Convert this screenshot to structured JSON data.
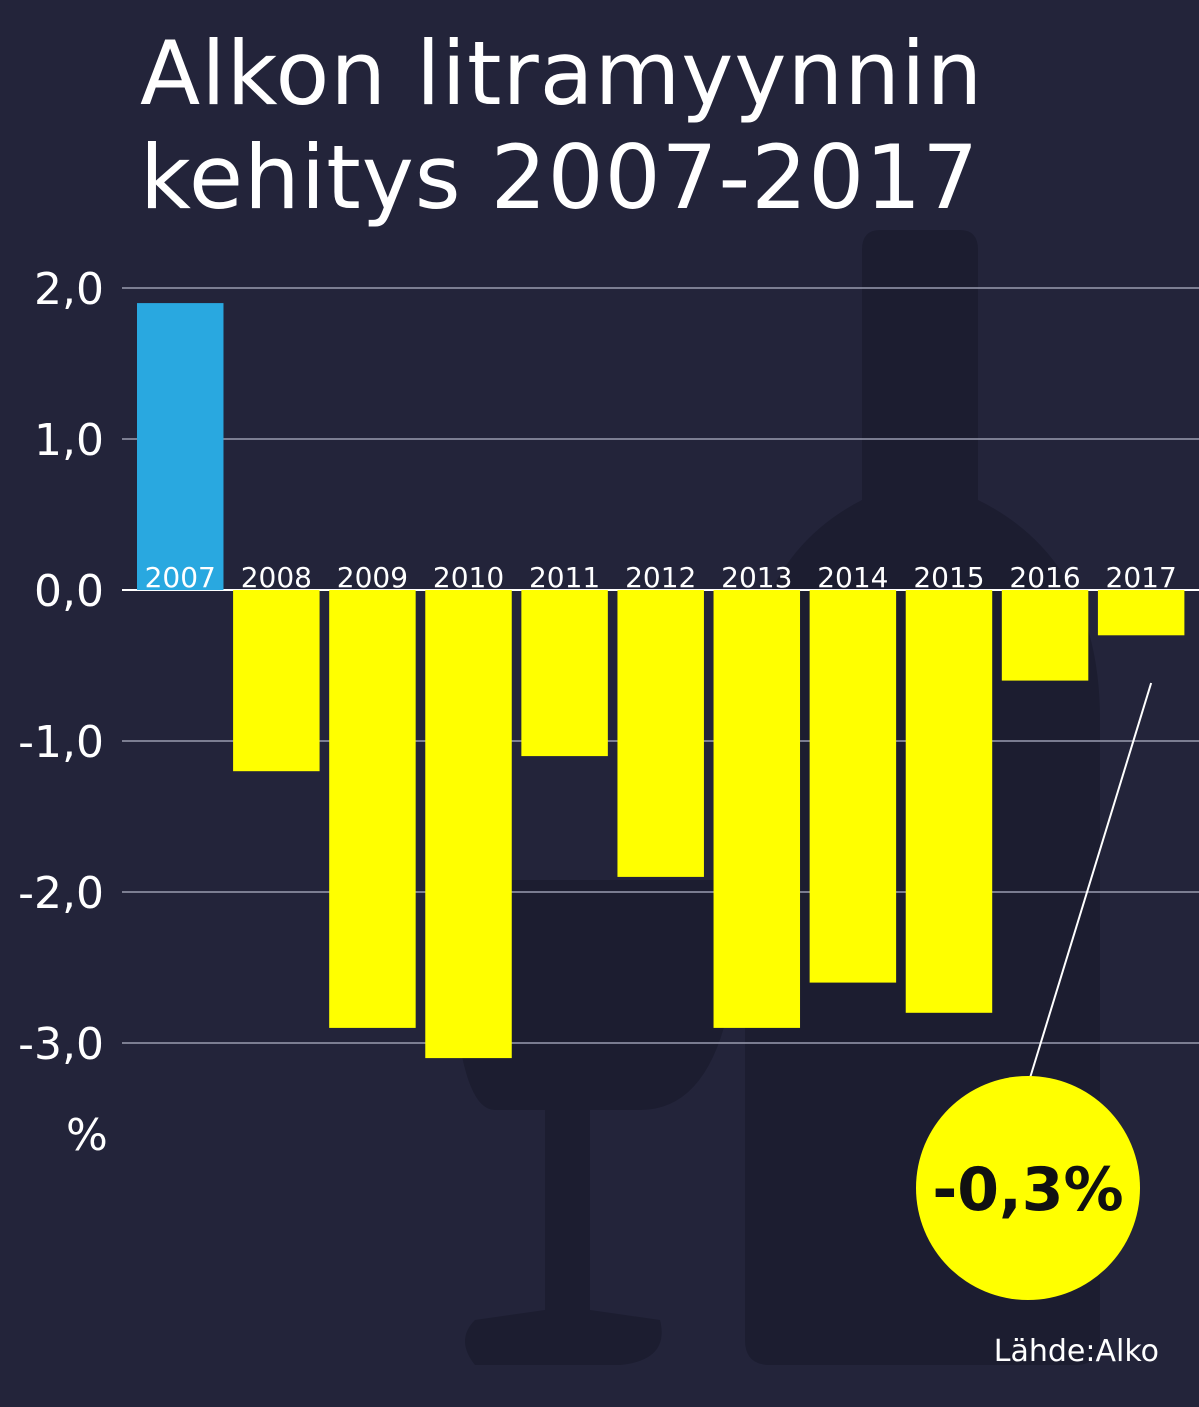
{
  "chart_data": {
    "type": "bar",
    "title": "Alkon litramyynnin\nkehitys 2007-2017",
    "categories": [
      "2007",
      "2008",
      "2009",
      "2010",
      "2011",
      "2012",
      "2013",
      "2014",
      "2015",
      "2016",
      "2017"
    ],
    "values": [
      1.9,
      -1.2,
      -2.9,
      -3.1,
      -1.1,
      -1.9,
      -2.9,
      -2.6,
      -2.8,
      -0.6,
      -0.3
    ],
    "yticks": [
      "2,0",
      "1,0",
      "0,0",
      "-1,0",
      "-2,0",
      "-3,0"
    ],
    "ytick_values": [
      2,
      1,
      0,
      -1,
      -2,
      -3
    ],
    "ylim": [
      -3,
      2
    ],
    "ylabel": "%",
    "grid": true,
    "colors": {
      "positive": "#29a8e0",
      "negative": "#ffff00",
      "background": "#23243a",
      "highlight": "#ffff00"
    },
    "annotation": {
      "text": "-0,3%",
      "target": "2017"
    },
    "source": "Lähde:Alko"
  }
}
